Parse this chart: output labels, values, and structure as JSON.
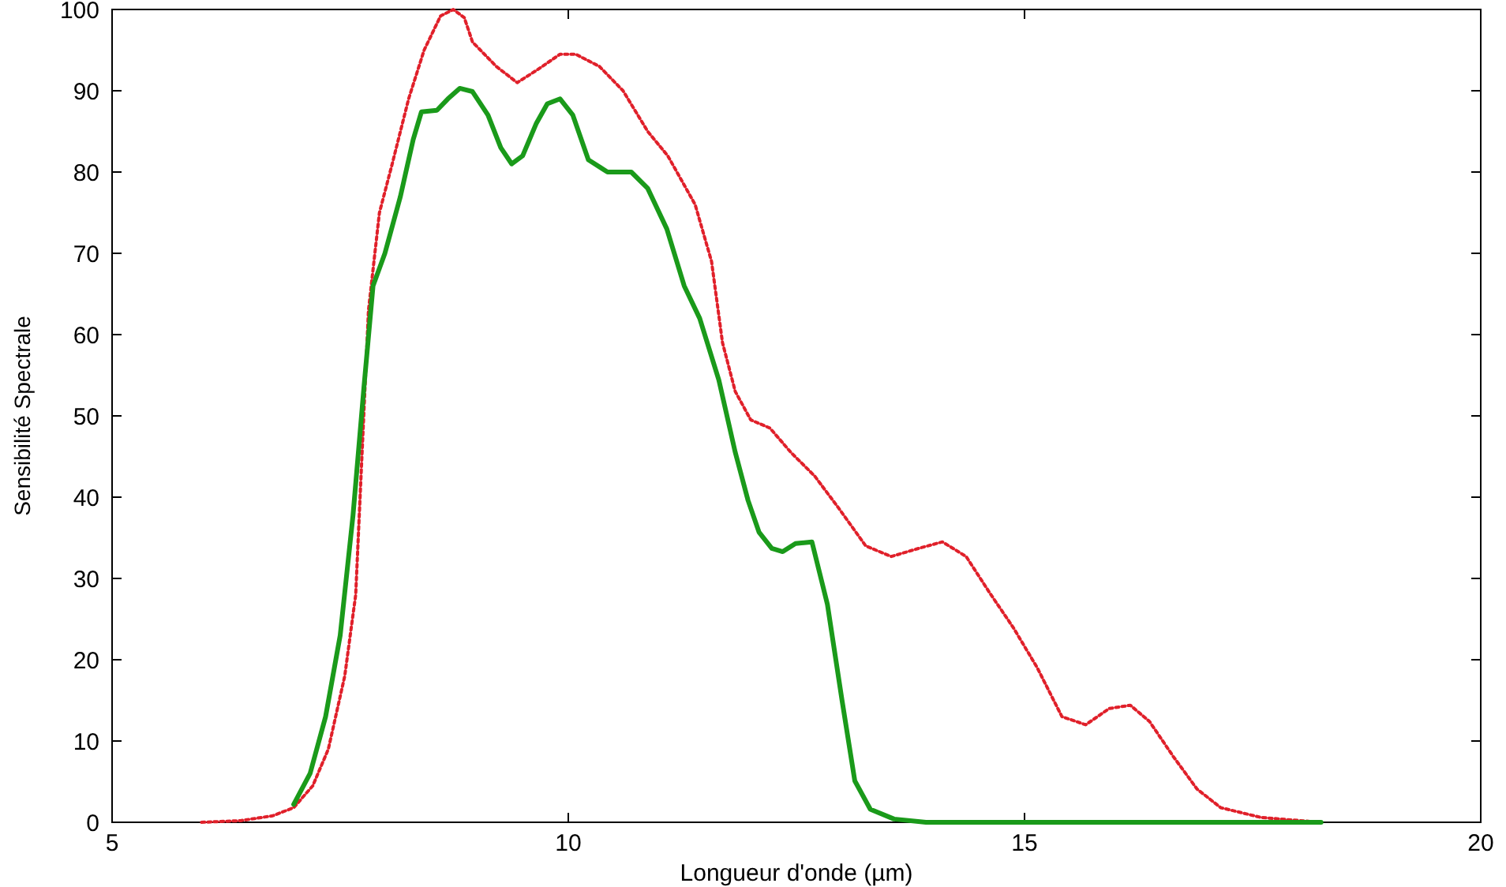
{
  "chart_data": {
    "type": "line",
    "xlabel": "Longueur d'onde (µm)",
    "ylabel": "Sensibilité Spectrale",
    "xlim": [
      5,
      20
    ],
    "xticks": [
      5,
      10,
      15,
      20
    ],
    "ylim": [
      0,
      100
    ],
    "yticks": [
      0,
      10,
      20,
      30,
      40,
      50,
      60,
      70,
      80,
      90,
      100
    ],
    "grid": false,
    "series": [
      {
        "color": "#e0202a",
        "line_style": "dotted",
        "x": [
          5.98,
          6.41,
          6.76,
          6.99,
          7.2,
          7.37,
          7.55,
          7.67,
          7.81,
          7.93,
          8.07,
          8.25,
          8.42,
          8.6,
          8.74,
          8.86,
          8.95,
          9.21,
          9.44,
          9.65,
          9.91,
          10.08,
          10.34,
          10.6,
          10.87,
          11.09,
          11.39,
          11.57,
          11.69,
          11.83,
          12.0,
          12.21,
          12.44,
          12.7,
          12.96,
          13.26,
          13.54,
          13.84,
          14.1,
          14.36,
          14.62,
          14.88,
          15.14,
          15.41,
          15.67,
          15.93,
          16.16,
          16.37,
          16.63,
          16.89,
          17.15,
          17.59,
          18.24
        ],
        "values": [
          0,
          0.2,
          0.8,
          1.8,
          4.5,
          9,
          18,
          28,
          63,
          75,
          81,
          89,
          95,
          99.2,
          100,
          99,
          96,
          93,
          91,
          92.5,
          94.5,
          94.5,
          93,
          90,
          85,
          82,
          76,
          69,
          59,
          53,
          49.5,
          48.5,
          45.5,
          42.6,
          38.7,
          34,
          32.7,
          33.7,
          34.5,
          32.7,
          28.2,
          23.9,
          19,
          13,
          12,
          14,
          14.4,
          12.4,
          8.1,
          4.1,
          1.8,
          0.6,
          0
        ]
      },
      {
        "color": "#1a9a1a",
        "line_style": "solid",
        "x": [
          6.99,
          7.17,
          7.34,
          7.5,
          7.64,
          7.76,
          7.86,
          7.99,
          8.16,
          8.3,
          8.39,
          8.56,
          8.68,
          8.81,
          8.95,
          9.12,
          9.26,
          9.38,
          9.5,
          9.65,
          9.77,
          9.91,
          10.05,
          10.22,
          10.43,
          10.69,
          10.87,
          11.08,
          11.27,
          11.44,
          11.65,
          11.83,
          11.97,
          12.09,
          12.23,
          12.35,
          12.49,
          12.67,
          12.84,
          13.0,
          13.14,
          13.31,
          13.57,
          13.92,
          18.25
        ],
        "values": [
          2.2,
          6,
          13,
          23,
          37.7,
          53.5,
          66,
          70,
          77,
          84,
          87.4,
          87.6,
          89,
          90.3,
          89.9,
          87,
          83,
          81,
          82,
          86,
          88.4,
          89,
          87,
          81.5,
          80,
          80,
          78,
          73,
          66,
          62,
          54.4,
          45.5,
          39.6,
          35.7,
          33.7,
          33.3,
          34.3,
          34.5,
          26.8,
          15,
          5.1,
          1.6,
          0.4,
          0,
          0
        ]
      }
    ]
  }
}
